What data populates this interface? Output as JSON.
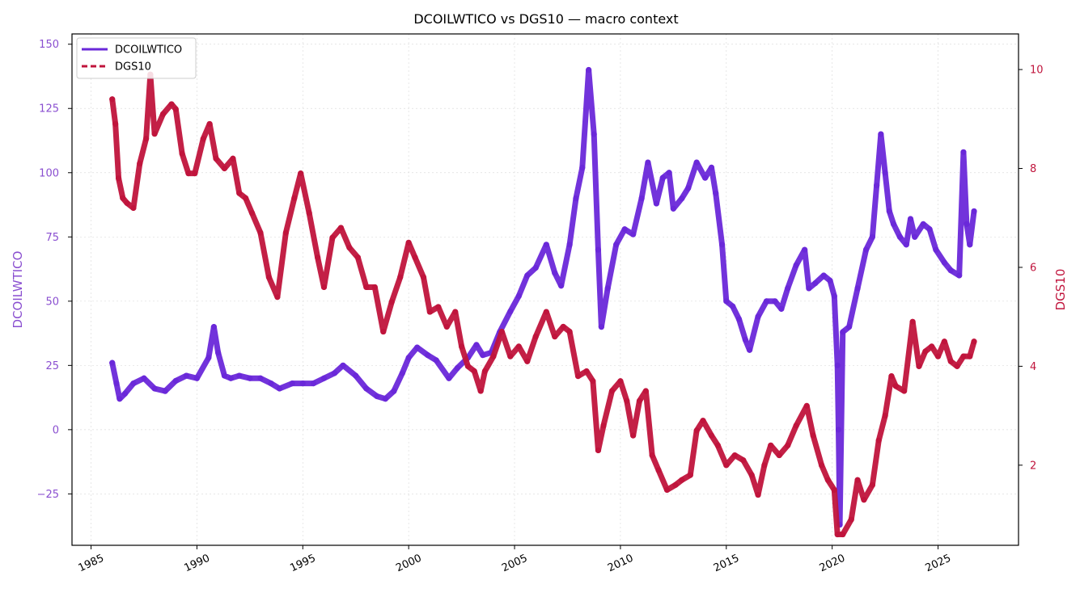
{
  "chart_data": {
    "type": "line",
    "title": "DCOILWTICO vs DGS10 — macro context",
    "xlabel": "",
    "x_ticks": [
      "1985",
      "1990",
      "1995",
      "2000",
      "2005",
      "2010",
      "2015",
      "2020",
      "2025"
    ],
    "xlim": [
      1984.1,
      2028.8
    ],
    "y_left": {
      "label": "DCOILWTICO",
      "ylim": [
        -45,
        154
      ],
      "ticks": [
        150,
        125,
        100,
        75,
        50,
        25,
        0,
        -25
      ],
      "tick_labels": [
        "150",
        "125",
        "100",
        "75",
        "50",
        "25",
        "0",
        "−25"
      ]
    },
    "y_right": {
      "label": "DGS10",
      "ylim": [
        0.38,
        10.72
      ],
      "ticks": [
        10,
        8,
        6,
        4,
        2
      ],
      "tick_labels": [
        "10",
        "8",
        "6",
        "4",
        "2"
      ]
    },
    "grid": true,
    "legend": {
      "position": "upper left",
      "entries": [
        {
          "label": "DCOILWTICO",
          "style": "solid"
        },
        {
          "label": "DGS10",
          "style": "dashed"
        }
      ]
    },
    "colors": {
      "DCOILWTICO": "#6a28d9",
      "DGS10": "#c0143c",
      "left_axis_text": "#8a4fd0",
      "right_axis_text": "#c0143c"
    },
    "series": [
      {
        "name": "DCOILWTICO",
        "axis": "left",
        "x": [
          1986.0,
          1986.2,
          1986.35,
          1986.6,
          1987.0,
          1987.5,
          1988.0,
          1988.5,
          1989.0,
          1989.5,
          1990.0,
          1990.55,
          1990.8,
          1991.0,
          1991.3,
          1991.6,
          1992.0,
          1992.5,
          1993.0,
          1993.5,
          1993.9,
          1994.5,
          1995.0,
          1995.5,
          1996.0,
          1996.5,
          1996.9,
          1997.5,
          1998.0,
          1998.5,
          1998.9,
          1999.3,
          1999.7,
          2000.0,
          2000.4,
          2000.9,
          2001.3,
          2001.9,
          2002.3,
          2002.8,
          2003.2,
          2003.5,
          2003.9,
          2004.3,
          2004.8,
          2005.2,
          2005.6,
          2006.0,
          2006.5,
          2006.9,
          2007.2,
          2007.6,
          2007.9,
          2008.2,
          2008.5,
          2008.75,
          2008.95,
          2009.1,
          2009.4,
          2009.8,
          2010.2,
          2010.6,
          2011.0,
          2011.3,
          2011.7,
          2012.0,
          2012.3,
          2012.5,
          2012.9,
          2013.2,
          2013.6,
          2014.0,
          2014.3,
          2014.5,
          2014.8,
          2015.0,
          2015.3,
          2015.6,
          2015.9,
          2016.1,
          2016.5,
          2016.9,
          2017.3,
          2017.6,
          2017.9,
          2018.3,
          2018.7,
          2018.9,
          2019.2,
          2019.6,
          2019.9,
          2020.1,
          2020.25,
          2020.3,
          2020.36,
          2020.5,
          2020.8,
          2021.2,
          2021.6,
          2021.9,
          2022.1,
          2022.3,
          2022.5,
          2022.7,
          2022.9,
          2023.2,
          2023.5,
          2023.7,
          2023.9,
          2024.3,
          2024.6,
          2024.9,
          2025.3,
          2025.6,
          2026.0,
          2026.2,
          2026.35,
          2026.5,
          2026.7
        ],
        "values": [
          26,
          18,
          12,
          14,
          18,
          20,
          16,
          15,
          19,
          21,
          20,
          28,
          40,
          30,
          21,
          20,
          21,
          20,
          20,
          18,
          16,
          18,
          18,
          18,
          20,
          22,
          25,
          21,
          16,
          13,
          12,
          15,
          22,
          28,
          32,
          29,
          27,
          20,
          24,
          28,
          33,
          29,
          30,
          38,
          46,
          52,
          60,
          63,
          72,
          61,
          56,
          72,
          90,
          102,
          140,
          115,
          70,
          40,
          55,
          72,
          78,
          76,
          90,
          104,
          88,
          98,
          100,
          86,
          90,
          94,
          104,
          98,
          102,
          92,
          72,
          50,
          48,
          43,
          35,
          31,
          44,
          50,
          50,
          47,
          55,
          64,
          70,
          55,
          57,
          60,
          58,
          52,
          25,
          0,
          -37,
          38,
          40,
          55,
          70,
          75,
          95,
          115,
          100,
          85,
          80,
          75,
          72,
          82,
          75,
          80,
          78,
          70,
          65,
          62,
          60,
          108,
          80,
          72,
          85
        ]
      },
      {
        "name": "DGS10",
        "axis": "right",
        "x": [
          1986.0,
          1986.15,
          1986.3,
          1986.5,
          1986.7,
          1987.0,
          1987.3,
          1987.6,
          1987.8,
          1988.0,
          1988.4,
          1988.8,
          1989.0,
          1989.3,
          1989.6,
          1989.9,
          1990.3,
          1990.6,
          1990.9,
          1991.3,
          1991.7,
          1992.0,
          1992.3,
          1992.6,
          1993.0,
          1993.4,
          1993.8,
          1994.2,
          1994.6,
          1994.9,
          1995.3,
          1995.7,
          1996.0,
          1996.4,
          1996.8,
          1997.2,
          1997.6,
          1998.0,
          1998.4,
          1998.8,
          1999.2,
          1999.6,
          2000.0,
          2000.3,
          2000.7,
          2001.0,
          2001.4,
          2001.8,
          2002.2,
          2002.5,
          2002.8,
          2003.1,
          2003.4,
          2003.6,
          2004.0,
          2004.4,
          2004.8,
          2005.2,
          2005.6,
          2006.0,
          2006.5,
          2006.9,
          2007.3,
          2007.6,
          2008.0,
          2008.4,
          2008.7,
          2008.95,
          2009.2,
          2009.6,
          2010.0,
          2010.3,
          2010.6,
          2010.9,
          2011.2,
          2011.5,
          2011.8,
          2012.2,
          2012.6,
          2012.9,
          2013.3,
          2013.6,
          2013.9,
          2014.3,
          2014.6,
          2015.0,
          2015.4,
          2015.8,
          2016.2,
          2016.5,
          2016.8,
          2017.1,
          2017.5,
          2017.9,
          2018.3,
          2018.8,
          2019.1,
          2019.5,
          2019.8,
          2020.1,
          2020.25,
          2020.5,
          2020.9,
          2021.2,
          2021.5,
          2021.9,
          2022.2,
          2022.5,
          2022.8,
          2023.0,
          2023.4,
          2023.8,
          2024.1,
          2024.4,
          2024.7,
          2025.0,
          2025.3,
          2025.6,
          2025.9,
          2026.2,
          2026.5,
          2026.7
        ],
        "values": [
          9.4,
          8.9,
          7.8,
          7.4,
          7.3,
          7.2,
          8.1,
          8.6,
          9.9,
          8.7,
          9.1,
          9.3,
          9.2,
          8.3,
          7.9,
          7.9,
          8.6,
          8.9,
          8.2,
          8.0,
          8.2,
          7.5,
          7.4,
          7.1,
          6.7,
          5.8,
          5.4,
          6.7,
          7.4,
          7.9,
          7.1,
          6.2,
          5.6,
          6.6,
          6.8,
          6.4,
          6.2,
          5.6,
          5.6,
          4.7,
          5.3,
          5.8,
          6.5,
          6.2,
          5.8,
          5.1,
          5.2,
          4.8,
          5.1,
          4.4,
          4.0,
          3.9,
          3.5,
          3.9,
          4.2,
          4.7,
          4.2,
          4.4,
          4.1,
          4.6,
          5.1,
          4.6,
          4.8,
          4.7,
          3.8,
          3.9,
          3.7,
          2.3,
          2.8,
          3.5,
          3.7,
          3.3,
          2.6,
          3.3,
          3.5,
          2.2,
          1.9,
          1.5,
          1.6,
          1.7,
          1.8,
          2.7,
          2.9,
          2.6,
          2.4,
          2.0,
          2.2,
          2.1,
          1.8,
          1.4,
          2.0,
          2.4,
          2.2,
          2.4,
          2.8,
          3.2,
          2.6,
          2.0,
          1.7,
          1.5,
          0.6,
          0.6,
          0.9,
          1.7,
          1.3,
          1.6,
          2.5,
          3.0,
          3.8,
          3.6,
          3.5,
          4.9,
          4.0,
          4.3,
          4.4,
          4.2,
          4.5,
          4.1,
          4.0,
          4.2,
          4.2,
          4.5
        ]
      }
    ]
  }
}
